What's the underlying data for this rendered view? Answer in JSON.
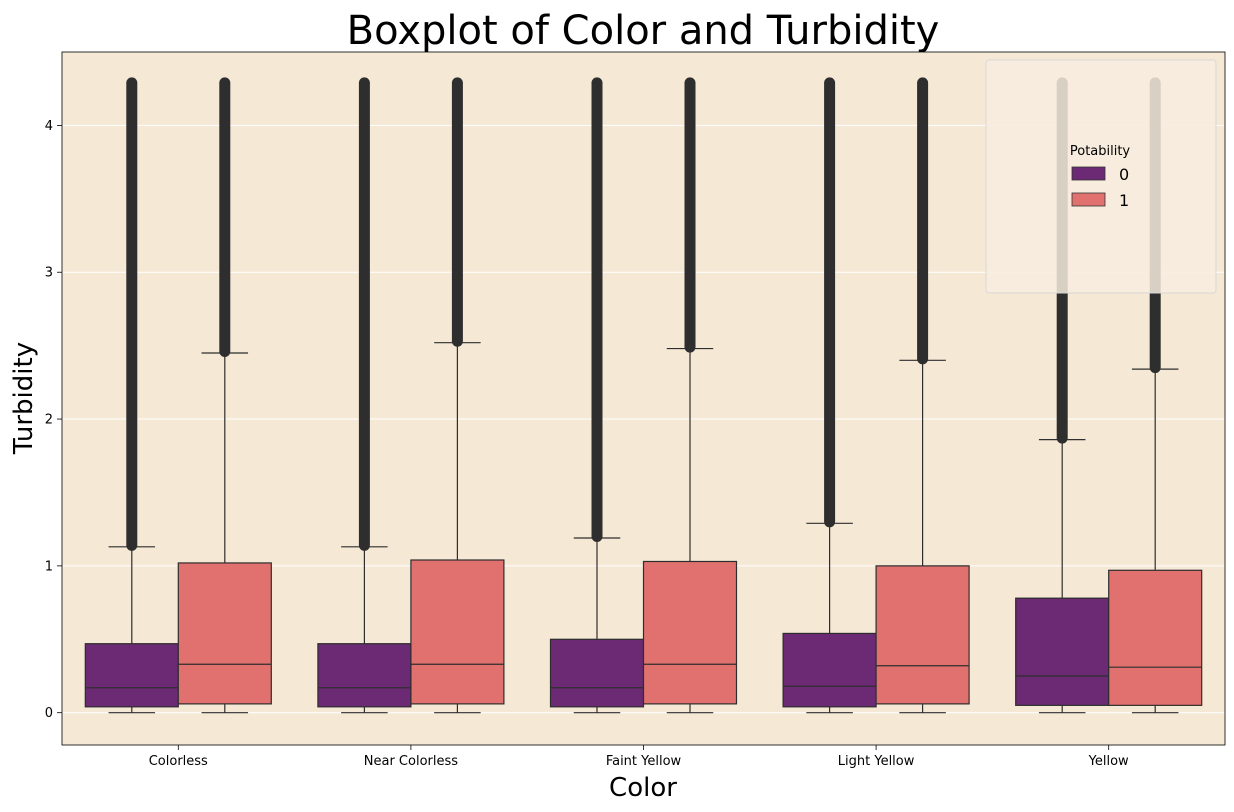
{
  "chart_data": {
    "type": "box",
    "title": "Boxplot of Color and Turbidity",
    "xlabel": "Color",
    "ylabel": "Turbidity",
    "categories": [
      "Colorless",
      "Near Colorless",
      "Faint Yellow",
      "Light Yellow",
      "Yellow"
    ],
    "ylim": [
      -0.22,
      4.5
    ],
    "yticks": [
      0,
      1,
      2,
      3,
      4
    ],
    "grid": true,
    "background": "#f5e8d5",
    "legend": {
      "title": "Potability",
      "position": "top-right"
    },
    "series": [
      {
        "name": "0",
        "color": "#6b2a73",
        "boxes": [
          {
            "whisker_low": 0.0,
            "q1": 0.04,
            "median": 0.17,
            "q3": 0.47,
            "whisker_high": 1.13,
            "outliers_from": 1.14,
            "outliers_to": 4.29
          },
          {
            "whisker_low": 0.0,
            "q1": 0.04,
            "median": 0.17,
            "q3": 0.47,
            "whisker_high": 1.13,
            "outliers_from": 1.14,
            "outliers_to": 4.29
          },
          {
            "whisker_low": 0.0,
            "q1": 0.04,
            "median": 0.17,
            "q3": 0.5,
            "whisker_high": 1.19,
            "outliers_from": 1.2,
            "outliers_to": 4.29
          },
          {
            "whisker_low": 0.0,
            "q1": 0.04,
            "median": 0.18,
            "q3": 0.54,
            "whisker_high": 1.29,
            "outliers_from": 1.3,
            "outliers_to": 4.29
          },
          {
            "whisker_low": 0.0,
            "q1": 0.05,
            "median": 0.25,
            "q3": 0.78,
            "whisker_high": 1.86,
            "outliers_from": 1.87,
            "outliers_to": 4.29
          }
        ]
      },
      {
        "name": "1",
        "color": "#e0716e",
        "boxes": [
          {
            "whisker_low": 0.0,
            "q1": 0.06,
            "median": 0.33,
            "q3": 1.02,
            "whisker_high": 2.45,
            "outliers_from": 2.46,
            "outliers_to": 4.29
          },
          {
            "whisker_low": 0.0,
            "q1": 0.06,
            "median": 0.33,
            "q3": 1.04,
            "whisker_high": 2.52,
            "outliers_from": 2.53,
            "outliers_to": 4.29
          },
          {
            "whisker_low": 0.0,
            "q1": 0.06,
            "median": 0.33,
            "q3": 1.03,
            "whisker_high": 2.48,
            "outliers_from": 2.49,
            "outliers_to": 4.29
          },
          {
            "whisker_low": 0.0,
            "q1": 0.06,
            "median": 0.32,
            "q3": 1.0,
            "whisker_high": 2.4,
            "outliers_from": 2.41,
            "outliers_to": 4.29
          },
          {
            "whisker_low": 0.0,
            "q1": 0.05,
            "median": 0.31,
            "q3": 0.97,
            "whisker_high": 2.34,
            "outliers_from": 2.35,
            "outliers_to": 4.29
          }
        ]
      }
    ]
  }
}
